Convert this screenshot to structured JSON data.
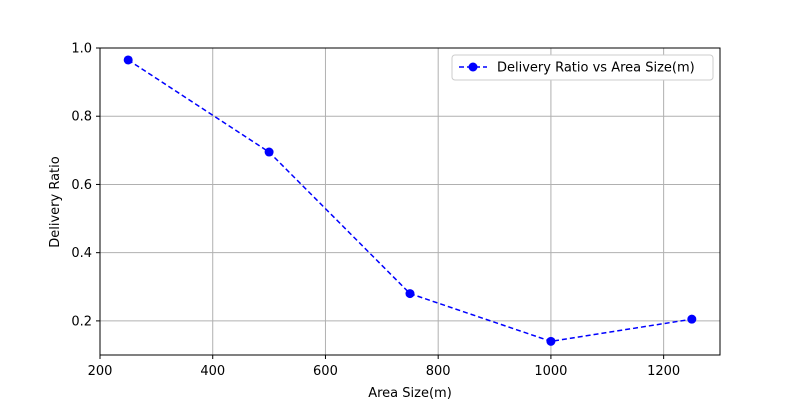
{
  "chart_data": {
    "type": "line",
    "title": "",
    "xlabel": "Area Size(m)",
    "ylabel": "Delivery Ratio",
    "xlim": [
      200,
      1300
    ],
    "ylim": [
      0.1,
      1.0
    ],
    "xticks": [
      200,
      400,
      600,
      800,
      1000,
      1200
    ],
    "yticks": [
      0.2,
      0.4,
      0.6,
      0.8,
      1.0
    ],
    "xtick_labels": [
      "200",
      "400",
      "600",
      "800",
      "1000",
      "1200"
    ],
    "ytick_labels": [
      "0.2",
      "0.4",
      "0.6",
      "0.8",
      "1.0"
    ],
    "grid": true,
    "legend_position": "top-right",
    "series": [
      {
        "name": "Delivery Ratio vs Area Size(m)",
        "color": "#0000ff",
        "line_style": "dashed",
        "marker": "circle",
        "x": [
          250,
          500,
          750,
          1000,
          1250
        ],
        "y": [
          0.965,
          0.695,
          0.28,
          0.14,
          0.205
        ]
      }
    ]
  }
}
